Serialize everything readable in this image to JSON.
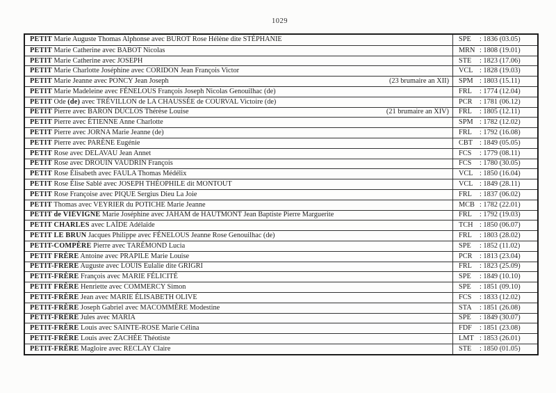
{
  "page_number": "1029",
  "table": {
    "rows": [
      {
        "head": "PETIT",
        "rest": " Marie Auguste Thomas Alphonse avec BUROT Rose Hélène dite STÉPHANIE",
        "head2": "",
        "rest2": "",
        "note": "",
        "code": "SPE",
        "entry": ": 1836 (03.05)"
      },
      {
        "head": "PETIT",
        "rest": " Marie Catherine avec BABOT Nicolas",
        "head2": "",
        "rest2": "",
        "note": "",
        "code": "MRN",
        "entry": ": 1808 (19.01)"
      },
      {
        "head": "PETIT",
        "rest": " Marie Catherine avec JOSEPH",
        "head2": "",
        "rest2": "",
        "note": "",
        "code": "STE",
        "entry": ": 1823 (17.06)"
      },
      {
        "head": "PETIT",
        "rest": " Marie Charlotte Joséphine avec CORIDON Jean François Victor",
        "head2": "",
        "rest2": "",
        "note": "",
        "code": "VCL",
        "entry": ": 1828 (19.03)"
      },
      {
        "head": "PETIT",
        "rest": " Marie Jeanne avec PONCY Jean Joseph",
        "head2": "",
        "rest2": "",
        "note": "(23 brumaire an XII)",
        "code": "SPM",
        "entry": ": 1803 (15.11)"
      },
      {
        "head": "PETIT",
        "rest": " Marie Madeleine avec FÉNELOUS François Joseph Nicolas Genouilhac (de)",
        "head2": "",
        "rest2": "",
        "note": "",
        "code": "FRL",
        "entry": ": 1774 (12.04)"
      },
      {
        "head": "PETIT",
        "rest": " Ode ",
        "head2": "(de)",
        "rest2": " avec TRÉVILLON de LA CHAUSSÉE de COURVAL Victoire (de)",
        "note": "",
        "code": "PCR",
        "entry": ": 1781 (06.12)"
      },
      {
        "head": "PETIT",
        "rest": " Pierre avec BARON DUCLOS Thérèse Louise",
        "head2": "",
        "rest2": "",
        "note": "(21 brumaire an XIV)",
        "code": "FRL",
        "entry": ": 1805 (12.11)"
      },
      {
        "head": "PETIT",
        "rest": " Pierre avec ÉTIENNE Anne Charlotte",
        "head2": "",
        "rest2": "",
        "note": "",
        "code": "SPM",
        "entry": ": 1782 (12.02)"
      },
      {
        "head": "PETIT",
        "rest": " Pierre avec JORNA Marie Jeanne (de)",
        "head2": "",
        "rest2": "",
        "note": "",
        "code": "FRL",
        "entry": ": 1792 (16.08)"
      },
      {
        "head": "PETIT",
        "rest": " Pierre avec PARÈNE Eugénie",
        "head2": "",
        "rest2": "",
        "note": "",
        "code": "CBT",
        "entry": ": 1849 (05.05)"
      },
      {
        "head": "PETIT",
        "rest": " Rose avec DELAVAU Jean Annet",
        "head2": "",
        "rest2": "",
        "note": "",
        "code": "FCS",
        "entry": ": 1779 (08.11)"
      },
      {
        "head": "PETIT",
        "rest": " Rose avec DROUIN VAUDRIN François",
        "head2": "",
        "rest2": "",
        "note": "",
        "code": "FCS",
        "entry": ": 1780 (30.05)"
      },
      {
        "head": "PETIT",
        "rest": " Rose Élisabeth avec FAULA Thomas Médélix",
        "head2": "",
        "rest2": "",
        "note": "",
        "code": "VCL",
        "entry": ": 1850 (16.04)"
      },
      {
        "head": "PETIT",
        "rest": " Rose Élise Sablé avec JOSEPH THÉOPHILE dit MONTOUT",
        "head2": "",
        "rest2": "",
        "note": "",
        "code": "VCL",
        "entry": ": 1849 (28.11)"
      },
      {
        "head": "PETIT",
        "rest": " Rose Françoise avec PIQUE Sergius Dieu La Joie",
        "head2": "",
        "rest2": "",
        "note": "",
        "code": "FRL",
        "entry": ": 1837 (06.02)"
      },
      {
        "head": "PETIT",
        "rest": " Thomas avec VEYRIER du POTICHE Marie Jeanne",
        "head2": "",
        "rest2": "",
        "note": "",
        "code": "MCB",
        "entry": ": 1782 (22.01)"
      },
      {
        "head": "PETIT de VIÉVIGNE",
        "rest": " Marie Joséphine avec JAHAM de HAUTMONT Jean Baptiste Pierre Marguerite",
        "head2": "",
        "rest2": "",
        "note": "",
        "code": "FRL",
        "entry": ": 1792 (19.03)"
      },
      {
        "head": "PETIT CHARLES",
        "rest": " avec LAÏDE Adélaïde",
        "head2": "",
        "rest2": "",
        "note": "",
        "code": "TCH",
        "entry": ": 1850 (06.07)"
      },
      {
        "head": "PETIT LE BRUN",
        "rest": " Jacques Philippe avec FÉNELOUS Jeanne Rose Genouilhac (de)",
        "head2": "",
        "rest2": "",
        "note": "",
        "code": "FRL",
        "entry": ": 1803 (28.02)"
      },
      {
        "head": "PETIT-COMPÈRE",
        "rest": " Pierre avec TARÉMOND Lucia",
        "head2": "",
        "rest2": "",
        "note": "",
        "code": "SPE",
        "entry": ": 1852 (11.02)"
      },
      {
        "head": "PETIT FRÈRE",
        "rest": " Antoine avec PRAPILE Marie Louise",
        "head2": "",
        "rest2": "",
        "note": "",
        "code": "PCR",
        "entry": ": 1813 (23.04)"
      },
      {
        "head": "PETIT-FRÈRE",
        "rest": " Auguste avec LOUIS Eulalie dite GRIGRI",
        "head2": "",
        "rest2": "",
        "note": "",
        "code": "FRL",
        "entry": ": 1823 (25.09)"
      },
      {
        "head": "PETIT-FRÈRE",
        "rest": " François avec MARIE FÉLICITÉ",
        "head2": "",
        "rest2": "",
        "note": "",
        "code": "SPE",
        "entry": ": 1849 (10.10)"
      },
      {
        "head": "PETIT FRÈRE",
        "rest": " Henriette avec COMMERCY Simon",
        "head2": "",
        "rest2": "",
        "note": "",
        "code": "SPE",
        "entry": ": 1851 (09.10)"
      },
      {
        "head": "PETIT-FRÈRE",
        "rest": " Jean avec MARIE ÉLISABETH OLIVE",
        "head2": "",
        "rest2": "",
        "note": "",
        "code": "FCS",
        "entry": ": 1833 (12.02)"
      },
      {
        "head": "PETIT-FRÈRE",
        "rest": " Joseph Gabriel avec MACOMMÈRE Modestine",
        "head2": "",
        "rest2": "",
        "note": "",
        "code": "STA",
        "entry": ": 1851 (26.08)"
      },
      {
        "head": "PETIT-FRÈRE",
        "rest": " Jules avec MARIA",
        "head2": "",
        "rest2": "",
        "note": "",
        "code": "SPE",
        "entry": ": 1849 (30.07)"
      },
      {
        "head": "PETIT-FRÈRE",
        "rest": " Louis avec SAINTE-ROSE Marie Célina",
        "head2": "",
        "rest2": "",
        "note": "",
        "code": "FDF",
        "entry": ": 1851 (23.08)"
      },
      {
        "head": "PETIT-FRÈRE",
        "rest": " Louis avec ZACHÉE Théotiste",
        "head2": "",
        "rest2": "",
        "note": "",
        "code": "LMT",
        "entry": ": 1853 (26.01)"
      },
      {
        "head": "PETIT-FRÈRE",
        "rest": " Magloire avec RECLAY Claire",
        "head2": "",
        "rest2": "",
        "note": "",
        "code": "STE",
        "entry": ": 1850 (01.05)"
      }
    ]
  }
}
